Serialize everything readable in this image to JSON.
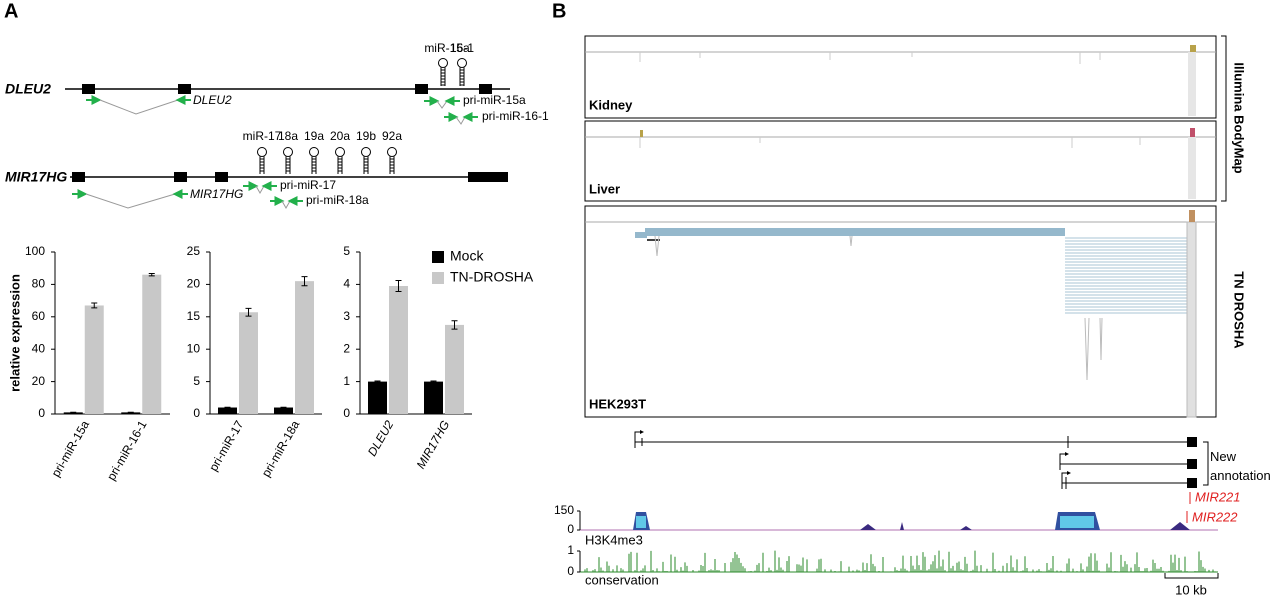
{
  "panel_labels": [
    "A",
    "B"
  ],
  "diagram": {
    "dleu2": {
      "gene": "DLEU2",
      "mirnas": [
        "miR-15a",
        "16-1"
      ],
      "primers": [
        "DLEU2",
        "pri-miR-15a",
        "pri-miR-16-1"
      ]
    },
    "mir17hg": {
      "gene": "MIR17HG",
      "mirnas": [
        "miR-17",
        "18a",
        "19a",
        "20a",
        "19b",
        "92a"
      ],
      "primers": [
        "MIR17HG",
        "pri-miR-17",
        "pri-miR-18a"
      ]
    }
  },
  "chart_data": [
    {
      "type": "bar",
      "ylabel": "relative expression",
      "categories": [
        "pri-miR-15a",
        "pri-miR-16-1"
      ],
      "series": [
        {
          "color": "#000000",
          "values": [
            1,
            1
          ],
          "errors": [
            0.1,
            0.1
          ]
        },
        {
          "color": "#c8c8c8",
          "values": [
            67,
            86
          ],
          "errors": [
            1.5,
            0.7
          ]
        }
      ],
      "ylim": [
        0,
        100
      ],
      "yticks": [
        0,
        20,
        40,
        60,
        80,
        100
      ]
    },
    {
      "type": "bar",
      "categories": [
        "pri-miR-17",
        "pri-miR-18a"
      ],
      "series": [
        {
          "color": "#000000",
          "values": [
            1,
            1
          ],
          "errors": [
            0.05,
            0.05
          ]
        },
        {
          "color": "#c8c8c8",
          "values": [
            15.7,
            20.5
          ],
          "errors": [
            0.6,
            0.7
          ]
        }
      ],
      "ylim": [
        0,
        25
      ],
      "yticks": [
        0,
        5,
        10,
        15,
        20,
        25
      ]
    },
    {
      "type": "bar",
      "categories": [
        "DLEU2",
        "MIR17HG"
      ],
      "category_style": "italic",
      "series": [
        {
          "name": "Mock",
          "color": "#000000",
          "values": [
            1,
            1
          ],
          "errors": [
            0.02,
            0.02
          ]
        },
        {
          "name": "TN-DROSHA",
          "color": "#c8c8c8",
          "values": [
            3.95,
            2.75
          ],
          "errors": [
            0.17,
            0.13
          ]
        }
      ],
      "ylim": [
        0,
        5
      ],
      "yticks": [
        0,
        1,
        2,
        3,
        4,
        5
      ],
      "legend": "top-right"
    }
  ],
  "browser": {
    "tracks": [
      "Kidney",
      "Liver",
      "HEK293T"
    ],
    "group_labels": [
      "Illumina BodyMap",
      "TN DROSHA"
    ],
    "annotation_label": "New annotation",
    "mirna_labels": [
      "MIR221",
      "MIR222"
    ],
    "h3k4me3": {
      "label": "H3K4me3",
      "ylim": [
        0,
        150
      ],
      "yticks": [
        0,
        150
      ]
    },
    "conservation": {
      "label": "conservation",
      "ylim": [
        0,
        1
      ],
      "yticks": [
        0,
        1
      ]
    },
    "scale_bar": "10 kb"
  }
}
